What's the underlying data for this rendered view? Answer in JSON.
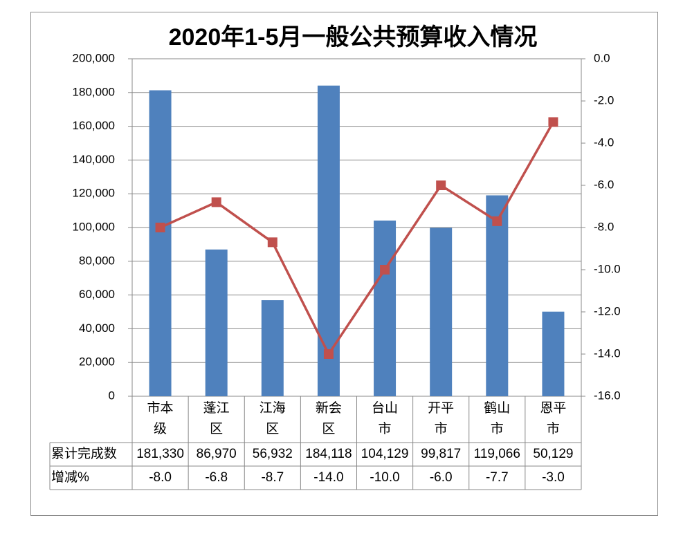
{
  "chart_data": {
    "type": "bar-line",
    "title": "2020年1-5月一般公共预算收入情况",
    "categories": [
      "市本级",
      "蓬江区",
      "江海区",
      "新会区",
      "台山市",
      "开平市",
      "鹤山市",
      "恩平市"
    ],
    "series": [
      {
        "name": "累计完成数",
        "type": "bar",
        "color": "#4f81bd",
        "axis": "y",
        "values": [
          181330,
          86970,
          56932,
          184118,
          104129,
          99817,
          119066,
          50129
        ],
        "value_labels": [
          "181,330",
          "86,970",
          "56,932",
          "184,118",
          "104,129",
          "99,817",
          "119,066",
          "50,129"
        ]
      },
      {
        "name": "增减%",
        "type": "line",
        "color": "#c0504d",
        "axis": "y2",
        "values": [
          -8.0,
          -6.8,
          -8.7,
          -14.0,
          -10.0,
          -6.0,
          -7.7,
          -3.0
        ],
        "value_labels": [
          "-8.0",
          "-6.8",
          "-8.7",
          "-14.0",
          "-10.0",
          "-6.0",
          "-7.7",
          "-3.0"
        ]
      }
    ],
    "ylim": [
      0,
      200000
    ],
    "yticks": [
      0,
      {
        "value": 20000,
        "label": "20,000"
      },
      {
        "value": 40000,
        "label": "40,000"
      },
      {
        "value": 60000,
        "label": "60,000"
      },
      {
        "value": 80000,
        "label": "80,000"
      },
      {
        "value": 100000,
        "label": "100,000"
      },
      {
        "value": 120000,
        "label": "120,000"
      },
      {
        "value": 140000,
        "label": "140,000"
      },
      {
        "value": 160000,
        "label": "160,000"
      },
      {
        "value": 180000,
        "label": "180,000"
      },
      {
        "value": 200000,
        "label": "200,000"
      }
    ],
    "y2lim": [
      -16,
      0
    ],
    "y2ticks": [
      {
        "value": -16,
        "label": "-16.0"
      },
      {
        "value": -14,
        "label": "-14.0"
      },
      {
        "value": -12,
        "label": "-12.0"
      },
      {
        "value": -10,
        "label": "-10.0"
      },
      {
        "value": -8,
        "label": "-8.0"
      },
      {
        "value": -6,
        "label": "-6.0"
      },
      {
        "value": -4,
        "label": "-4.0"
      },
      {
        "value": -2,
        "label": "-2.0"
      },
      {
        "value": 0,
        "label": "0.0"
      }
    ],
    "grid": true,
    "data_table": true
  }
}
